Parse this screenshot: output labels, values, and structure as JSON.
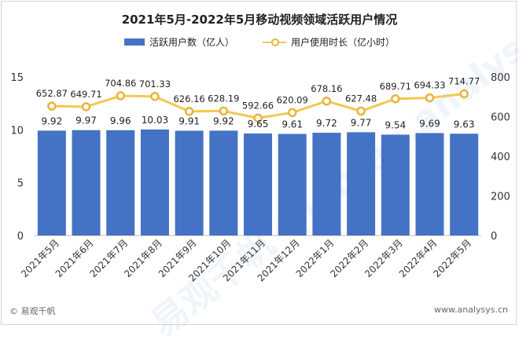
{
  "title": "2021年5月-2022年5月移动视频领域活跃用户情况",
  "legend": {
    "bar_label": "活跃用户数（亿人）",
    "line_label": "用户使用时长（亿小时）"
  },
  "watermark": "易观千帆 Qianfan.analysys.cn",
  "footer": {
    "source": "© 易观千帆",
    "url": "www.analysys.cn"
  },
  "colors": {
    "bar": "#4472c4",
    "line": "#f3c84f",
    "marker_edge": "#e6b53a"
  },
  "chart_data": {
    "type": "bar",
    "categories": [
      "2021年5月",
      "2021年6月",
      "2021年7月",
      "2021年8月",
      "2021年9月",
      "2021年10月",
      "2021年11月",
      "2021年12月",
      "2022年1月",
      "2022年2月",
      "2022年3月",
      "2022年4月",
      "2022年5月"
    ],
    "series": [
      {
        "name": "活跃用户数（亿人）",
        "type": "bar",
        "axis": "left",
        "values": [
          9.92,
          9.97,
          9.96,
          10.03,
          9.91,
          9.92,
          9.65,
          9.61,
          9.72,
          9.77,
          9.54,
          9.69,
          9.63
        ]
      },
      {
        "name": "用户使用时长（亿小时）",
        "type": "line",
        "axis": "right",
        "values": [
          652.87,
          649.71,
          704.86,
          701.33,
          626.16,
          628.19,
          592.66,
          620.09,
          678.16,
          627.48,
          689.71,
          694.33,
          714.77
        ]
      }
    ],
    "y_left": {
      "lim": [
        0,
        15
      ],
      "ticks": [
        0,
        5,
        10,
        15
      ]
    },
    "y_right": {
      "lim": [
        0,
        800
      ],
      "ticks": [
        0,
        200,
        400,
        600,
        800
      ]
    },
    "legend_position": "top",
    "grid": false
  }
}
